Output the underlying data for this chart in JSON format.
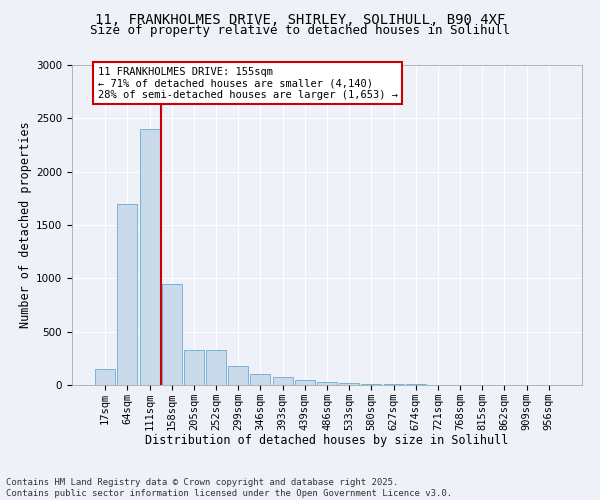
{
  "title_line1": "11, FRANKHOLMES DRIVE, SHIRLEY, SOLIHULL, B90 4XF",
  "title_line2": "Size of property relative to detached houses in Solihull",
  "xlabel": "Distribution of detached houses by size in Solihull",
  "ylabel": "Number of detached properties",
  "categories": [
    "17sqm",
    "64sqm",
    "111sqm",
    "158sqm",
    "205sqm",
    "252sqm",
    "299sqm",
    "346sqm",
    "393sqm",
    "439sqm",
    "486sqm",
    "533sqm",
    "580sqm",
    "627sqm",
    "674sqm",
    "721sqm",
    "768sqm",
    "815sqm",
    "862sqm",
    "909sqm",
    "956sqm"
  ],
  "values": [
    150,
    1700,
    2400,
    950,
    325,
    325,
    175,
    100,
    75,
    50,
    30,
    20,
    10,
    5,
    5,
    3,
    3,
    2,
    2,
    2,
    2
  ],
  "bar_color": "#c9daea",
  "bar_edge_color": "#6aaad4",
  "red_line_x": 2.5,
  "annotation_text": "11 FRANKHOLMES DRIVE: 155sqm\n← 71% of detached houses are smaller (4,140)\n28% of semi-detached houses are larger (1,653) →",
  "annotation_box_color": "#ffffff",
  "annotation_box_edge_color": "#cc0000",
  "red_line_color": "#cc0000",
  "ylim": [
    0,
    3000
  ],
  "yticks": [
    0,
    500,
    1000,
    1500,
    2000,
    2500,
    3000
  ],
  "footnote": "Contains HM Land Registry data © Crown copyright and database right 2025.\nContains public sector information licensed under the Open Government Licence v3.0.",
  "background_color": "#eef2f8",
  "grid_color": "#ffffff",
  "title_fontsize": 10,
  "subtitle_fontsize": 9,
  "axis_label_fontsize": 8.5,
  "tick_fontsize": 7.5,
  "annotation_fontsize": 7.5,
  "footnote_fontsize": 6.5
}
